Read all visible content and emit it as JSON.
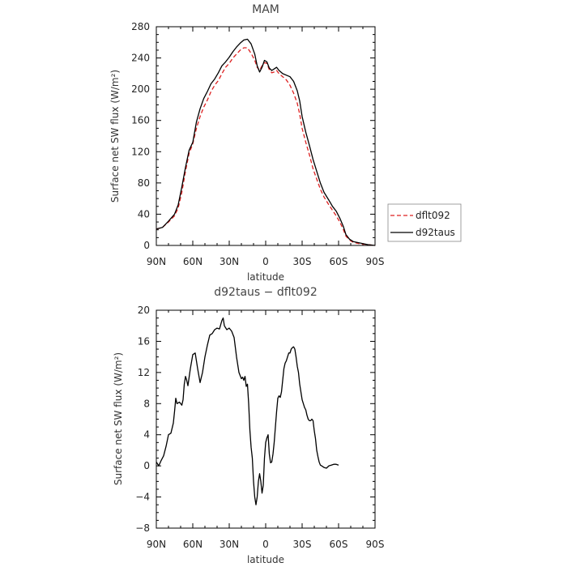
{
  "chart_data": [
    {
      "type": "line",
      "title": "MAM",
      "xlabel": "latitude",
      "ylabel": "Surface net SW flux (W/m²)",
      "xlim": [
        -90,
        90
      ],
      "ylim": [
        0,
        280
      ],
      "x_ticks": [
        -90,
        -60,
        -30,
        0,
        30,
        60,
        90
      ],
      "x_tick_labels": [
        "90N",
        "60N",
        "30N",
        "0",
        "30S",
        "60S",
        "90S"
      ],
      "y_ticks": [
        0,
        40,
        80,
        120,
        160,
        200,
        240,
        280
      ],
      "y_tick_labels": [
        "0",
        "40",
        "80",
        "120",
        "160",
        "200",
        "240",
        "280"
      ],
      "legend": "right",
      "series": [
        {
          "name": "dflt092",
          "color": "#dd2020",
          "dash": true,
          "points": [
            [
              -90,
              21
            ],
            [
              -85,
              23
            ],
            [
              -80,
              30
            ],
            [
              -75,
              38
            ],
            [
              -72,
              48
            ],
            [
              -69,
              68
            ],
            [
              -66,
              95
            ],
            [
              -63,
              118
            ],
            [
              -60,
              130
            ],
            [
              -57,
              150
            ],
            [
              -54,
              165
            ],
            [
              -51,
              177
            ],
            [
              -48,
              186
            ],
            [
              -45,
              197
            ],
            [
              -42,
              205
            ],
            [
              -39,
              211
            ],
            [
              -36,
              220
            ],
            [
              -33,
              228
            ],
            [
              -30,
              233
            ],
            [
              -27,
              240
            ],
            [
              -24,
              245
            ],
            [
              -21,
              250
            ],
            [
              -18,
              253
            ],
            [
              -15,
              253
            ],
            [
              -12,
              246
            ],
            [
              -9,
              237
            ],
            [
              -7,
              228
            ],
            [
              -5,
              224
            ],
            [
              -3,
              230
            ],
            [
              -1,
              234
            ],
            [
              1,
              233
            ],
            [
              3,
              225
            ],
            [
              5,
              221
            ],
            [
              7,
              222
            ],
            [
              9,
              224
            ],
            [
              11,
              220
            ],
            [
              14,
              216
            ],
            [
              17,
              212
            ],
            [
              20,
              205
            ],
            [
              23,
              195
            ],
            [
              26,
              182
            ],
            [
              28,
              168
            ],
            [
              30,
              150
            ],
            [
              33,
              132
            ],
            [
              36,
              116
            ],
            [
              39,
              98
            ],
            [
              42,
              85
            ],
            [
              45,
              72
            ],
            [
              48,
              62
            ],
            [
              52,
              52
            ],
            [
              55,
              45
            ],
            [
              58,
              38
            ],
            [
              61,
              30
            ],
            [
              64,
              20
            ],
            [
              66,
              12
            ],
            [
              69,
              7
            ],
            [
              72,
              4
            ],
            [
              78,
              2
            ],
            [
              84,
              1
            ],
            [
              90,
              0
            ]
          ]
        },
        {
          "name": "d92taus",
          "color": "#000000",
          "dash": false,
          "points": [
            [
              -90,
              21
            ],
            [
              -85,
              23
            ],
            [
              -80,
              31
            ],
            [
              -75,
              40
            ],
            [
              -72,
              52
            ],
            [
              -69,
              75
            ],
            [
              -66,
              100
            ],
            [
              -63,
              122
            ],
            [
              -60,
              132
            ],
            [
              -57,
              158
            ],
            [
              -54,
              175
            ],
            [
              -51,
              188
            ],
            [
              -48,
              197
            ],
            [
              -45,
              207
            ],
            [
              -42,
              213
            ],
            [
              -39,
              221
            ],
            [
              -36,
              230
            ],
            [
              -33,
              235
            ],
            [
              -30,
              241
            ],
            [
              -27,
              248
            ],
            [
              -24,
              254
            ],
            [
              -21,
              259
            ],
            [
              -18,
              263
            ],
            [
              -15,
              264
            ],
            [
              -12,
              258
            ],
            [
              -9,
              245
            ],
            [
              -7,
              230
            ],
            [
              -5,
              222
            ],
            [
              -3,
              228
            ],
            [
              -1,
              237
            ],
            [
              1,
              235
            ],
            [
              3,
              227
            ],
            [
              5,
              224
            ],
            [
              7,
              226
            ],
            [
              9,
              228
            ],
            [
              11,
              224
            ],
            [
              14,
              220
            ],
            [
              17,
              218
            ],
            [
              20,
              216
            ],
            [
              23,
              210
            ],
            [
              26,
              198
            ],
            [
              28,
              185
            ],
            [
              30,
              165
            ],
            [
              33,
              145
            ],
            [
              36,
              128
            ],
            [
              39,
              110
            ],
            [
              42,
              95
            ],
            [
              45,
              80
            ],
            [
              48,
              68
            ],
            [
              52,
              58
            ],
            [
              55,
              50
            ],
            [
              58,
              44
            ],
            [
              61,
              35
            ],
            [
              64,
              24
            ],
            [
              66,
              14
            ],
            [
              69,
              8
            ],
            [
              72,
              5
            ],
            [
              78,
              3
            ],
            [
              84,
              1
            ],
            [
              90,
              0
            ]
          ]
        }
      ]
    },
    {
      "type": "line",
      "title": "d92taus − dflt092",
      "xlabel": "latitude",
      "ylabel": "Surface net SW flux (W/m²)",
      "xlim": [
        -90,
        90
      ],
      "ylim": [
        -8,
        20
      ],
      "x_ticks": [
        -90,
        -60,
        -30,
        0,
        30,
        60,
        90
      ],
      "x_tick_labels": [
        "90N",
        "60N",
        "30N",
        "0",
        "30S",
        "60S",
        "90S"
      ],
      "y_ticks": [
        -8,
        -4,
        0,
        4,
        8,
        12,
        16,
        20
      ],
      "y_tick_labels": [
        "−8",
        "−4",
        "0",
        "4",
        "8",
        "12",
        "16",
        "20"
      ],
      "series": [
        {
          "color": "#000000",
          "points": [
            [
              -90,
              0.5
            ],
            [
              -88,
              0
            ],
            [
              -86,
              0.7
            ],
            [
              -84,
              1.3
            ],
            [
              -82,
              2.5
            ],
            [
              -80,
              4
            ],
            [
              -78,
              4.2
            ],
            [
              -76,
              5.5
            ],
            [
              -75,
              7
            ],
            [
              -74,
              8.7
            ],
            [
              -73,
              8
            ],
            [
              -71,
              8.2
            ],
            [
              -69,
              7.8
            ],
            [
              -68,
              8.5
            ],
            [
              -67,
              10.5
            ],
            [
              -66,
              11.5
            ],
            [
              -65,
              11
            ],
            [
              -64,
              10.3
            ],
            [
              -62,
              12.5
            ],
            [
              -60,
              14.3
            ],
            [
              -58,
              14.5
            ],
            [
              -56,
              12.5
            ],
            [
              -54,
              10.7
            ],
            [
              -52,
              12
            ],
            [
              -50,
              14
            ],
            [
              -48,
              15.5
            ],
            [
              -46,
              16.8
            ],
            [
              -44,
              17
            ],
            [
              -42,
              17.5
            ],
            [
              -40,
              17.7
            ],
            [
              -38,
              17.6
            ],
            [
              -36,
              18.7
            ],
            [
              -35,
              19
            ],
            [
              -34,
              18
            ],
            [
              -32,
              17.5
            ],
            [
              -30,
              17.7
            ],
            [
              -28,
              17.3
            ],
            [
              -26,
              16.5
            ],
            [
              -24,
              14
            ],
            [
              -22,
              12
            ],
            [
              -20,
              11.2
            ],
            [
              -19,
              11.4
            ],
            [
              -18,
              11
            ],
            [
              -17,
              11.5
            ],
            [
              -16,
              10.2
            ],
            [
              -15,
              10.5
            ],
            [
              -14,
              8
            ],
            [
              -13,
              4.6
            ],
            [
              -12,
              2.4
            ],
            [
              -11,
              1
            ],
            [
              -10,
              -2
            ],
            [
              -9,
              -4
            ],
            [
              -8,
              -5
            ],
            [
              -7,
              -4
            ],
            [
              -6,
              -2
            ],
            [
              -5,
              -1
            ],
            [
              -4,
              -2
            ],
            [
              -3,
              -3.5
            ],
            [
              -2,
              -2.5
            ],
            [
              -1,
              1
            ],
            [
              0,
              3
            ],
            [
              1,
              3.6
            ],
            [
              2,
              4
            ],
            [
              3,
              1.5
            ],
            [
              4,
              0.4
            ],
            [
              5,
              0.5
            ],
            [
              6,
              1.5
            ],
            [
              7,
              3
            ],
            [
              8,
              5
            ],
            [
              9,
              7
            ],
            [
              10,
              8.7
            ],
            [
              11,
              9
            ],
            [
              12,
              8.8
            ],
            [
              13,
              9.5
            ],
            [
              14,
              11
            ],
            [
              15,
              12.5
            ],
            [
              16,
              13.2
            ],
            [
              17,
              13.5
            ],
            [
              18,
              14
            ],
            [
              19,
              14.5
            ],
            [
              20,
              14.5
            ],
            [
              21,
              15
            ],
            [
              22,
              15.2
            ],
            [
              23,
              15.3
            ],
            [
              24,
              15
            ],
            [
              25,
              14
            ],
            [
              26,
              12.8
            ],
            [
              27,
              12
            ],
            [
              28,
              10.5
            ],
            [
              29,
              9.5
            ],
            [
              30,
              8.5
            ],
            [
              31,
              8
            ],
            [
              32,
              7.5
            ],
            [
              33,
              7.2
            ],
            [
              34,
              6.5
            ],
            [
              35,
              6
            ],
            [
              36,
              5.8
            ],
            [
              37,
              5.8
            ],
            [
              38,
              6
            ],
            [
              39,
              5.8
            ],
            [
              40,
              4.5
            ],
            [
              41,
              3.5
            ],
            [
              42,
              2
            ],
            [
              43,
              1.2
            ],
            [
              44,
              0.5
            ],
            [
              45,
              0.1
            ],
            [
              46,
              0
            ],
            [
              48,
              -0.2
            ],
            [
              50,
              -0.3
            ],
            [
              52,
              0
            ],
            [
              54,
              0.1
            ],
            [
              56,
              0.2
            ],
            [
              58,
              0.2
            ],
            [
              60,
              0.1
            ]
          ]
        }
      ]
    }
  ]
}
